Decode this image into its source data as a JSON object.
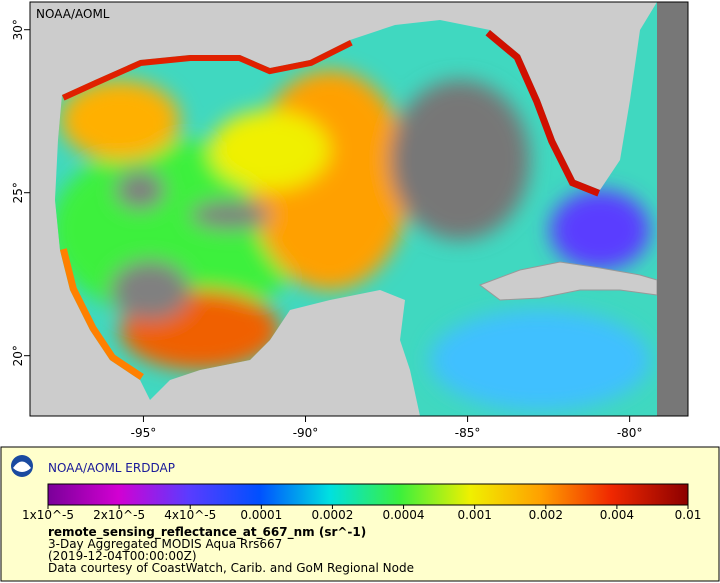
{
  "map": {
    "label": "NOAA/AOML",
    "xlim": [
      -98.5,
      -78.2
    ],
    "ylim": [
      18.15,
      30.85
    ],
    "xticks": [
      {
        "value": -95,
        "label": "-95°"
      },
      {
        "value": -90,
        "label": "-90°"
      },
      {
        "value": -85,
        "label": "-85°"
      },
      {
        "value": -80,
        "label": "-80°"
      }
    ],
    "yticks": [
      {
        "value": 20,
        "label": "20°"
      },
      {
        "value": 25,
        "label": "25°"
      },
      {
        "value": 30,
        "label": "30°"
      }
    ]
  },
  "legend": {
    "title": "NOAA/AOML ERDDAP",
    "colorbar_ticks": [
      {
        "value": 1e-05,
        "label": "1x10^-5"
      },
      {
        "value": 2e-05,
        "label": "2x10^-5"
      },
      {
        "value": 4e-05,
        "label": "4x10^-5"
      },
      0.0001,
      0.0002,
      0.0004,
      0.001,
      0.002,
      0.004,
      0.01
    ],
    "variable": "remote_sensing_reflectance_at_667_nm (sr^-1)",
    "lines": [
      "3-Day Aggregated MODIS Aqua Rrs667",
      "(2019-12-04T00:00:00Z)",
      "Data courtesy of CoastWatch, Carib. and GoM Regional Node"
    ]
  }
}
